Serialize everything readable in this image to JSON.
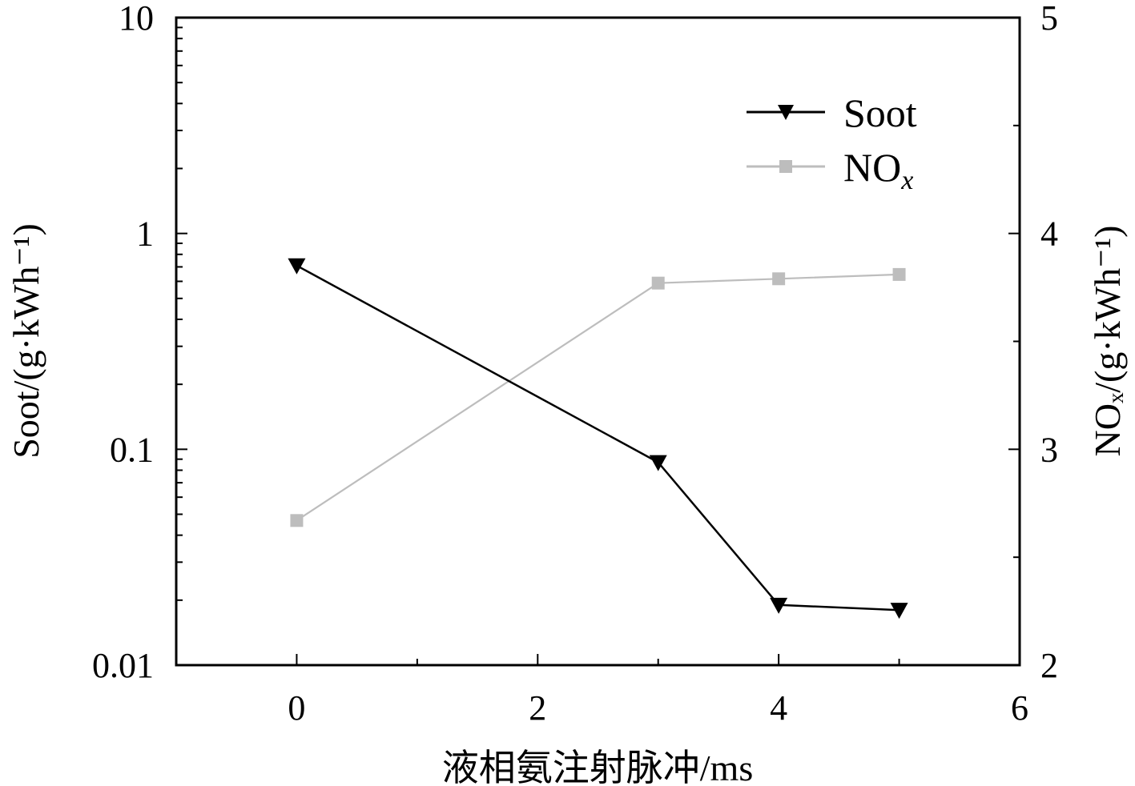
{
  "chart_data": {
    "type": "line",
    "xlabel": "液相氨注射脉冲/ms",
    "ylabel_left": "Soot/(g·kWh⁻¹)",
    "ylabel_right": "NOₓ/(g·kWh⁻¹)",
    "xlim": [
      -1,
      6
    ],
    "x_ticks": [
      "0",
      "2",
      "4",
      "6"
    ],
    "y_left": {
      "scale": "log",
      "lim": [
        0.01,
        10
      ],
      "ticks": [
        "0.01",
        "0.1",
        "1",
        "10"
      ]
    },
    "y_right": {
      "scale": "linear",
      "lim": [
        2,
        5
      ],
      "ticks": [
        "2",
        "3",
        "4",
        "5"
      ]
    },
    "legend_position": "top-right",
    "series": [
      {
        "name": "Soot",
        "axis": "left",
        "color": "#000000",
        "marker": "triangle-down",
        "x": [
          0,
          3,
          4,
          5
        ],
        "y": [
          0.71,
          0.087,
          0.019,
          0.018
        ]
      },
      {
        "name": "NOx",
        "axis": "right",
        "color": "#bdbdbd",
        "marker": "square",
        "x": [
          0,
          3,
          4,
          5
        ],
        "y": [
          2.67,
          3.77,
          3.79,
          3.81
        ]
      }
    ],
    "legend": [
      {
        "label": "Soot",
        "sub": ""
      },
      {
        "label": "NO",
        "sub": "x"
      }
    ]
  }
}
